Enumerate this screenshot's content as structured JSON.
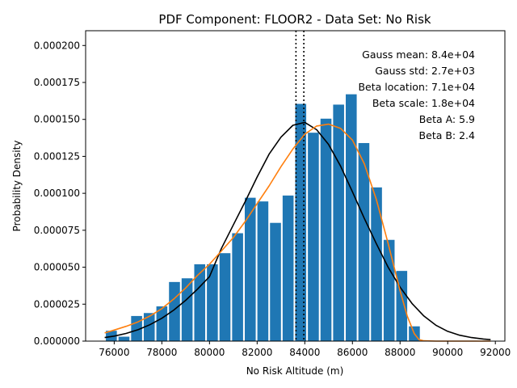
{
  "chart_data": {
    "type": "bar",
    "title": "PDF Component: FLOOR2 - Data Set: No Risk",
    "xlabel": "No Risk Altitude (m)",
    "ylabel": "Probability Density",
    "xlim": [
      74800,
      92400
    ],
    "ylim": [
      0,
      0.00021
    ],
    "xticks": [
      76000,
      78000,
      80000,
      82000,
      84000,
      86000,
      88000,
      90000,
      92000
    ],
    "xtick_labels": [
      "76000",
      "78000",
      "80000",
      "82000",
      "84000",
      "86000",
      "88000",
      "90000",
      "92000"
    ],
    "yticks": [
      0,
      2.5e-05,
      5e-05,
      7.5e-05,
      0.0001,
      0.000125,
      0.00015,
      0.000175,
      0.0002
    ],
    "ytick_labels": [
      "0.000000",
      "0.000025",
      "0.000050",
      "0.000075",
      "0.000100",
      "0.000125",
      "0.000150",
      "0.000175",
      "0.000200"
    ],
    "grid": false,
    "bar_color": "#1f77b4",
    "bars": {
      "width": 460,
      "centers": [
        75880,
        76410,
        76940,
        77470,
        78000,
        78530,
        79060,
        79590,
        80120,
        80650,
        81180,
        81710,
        82240,
        82770,
        83300,
        83830,
        84360,
        84890,
        85420,
        85950,
        86480,
        87010,
        87540,
        88070,
        88600
      ],
      "values": [
        7e-06,
        3e-06,
        1.7e-05,
        1.9e-05,
        2.35e-05,
        4e-05,
        4.25e-05,
        5.2e-05,
        5.2e-05,
        5.95e-05,
        7.3e-05,
        9.7e-05,
        9.45e-05,
        8e-05,
        9.85e-05,
        0.0001605,
        0.000141,
        0.0001505,
        0.00016,
        0.000167,
        0.000134,
        0.000104,
        6.85e-05,
        4.75e-05,
        1e-05
      ]
    },
    "series": [
      {
        "kind": "gauss",
        "color": "#000000",
        "x": [
          75600,
          76000,
          76500,
          77000,
          77500,
          78000,
          78500,
          79000,
          79500,
          80000,
          80500,
          81000,
          81500,
          82000,
          82500,
          83000,
          83500,
          84000,
          84500,
          85000,
          85500,
          86000,
          86500,
          87000,
          87500,
          88000,
          88500,
          89000,
          89500,
          90000,
          90500,
          91000,
          91500,
          91800
        ],
        "y": [
          2.4e-06,
          3.4e-06,
          5.2e-06,
          7.7e-06,
          1.11e-05,
          1.55e-05,
          2.1e-05,
          2.76e-05,
          3.52e-05,
          4.36e-05,
          6.27e-05,
          7.86e-05,
          9.45e-05,
          0.000111,
          0.0001265,
          0.000138,
          0.000146,
          0.000148,
          0.000143,
          0.000133,
          0.0001185,
          0.000101,
          8.3e-05,
          6.6e-05,
          5e-05,
          3.65e-05,
          2.55e-05,
          1.7e-05,
          1.08e-05,
          6.6e-06,
          4e-06,
          2.4e-06,
          1.4e-06,
          1e-06
        ]
      },
      {
        "kind": "beta",
        "color": "#ff7f0e",
        "x": [
          75600,
          76000,
          76500,
          77000,
          77500,
          78000,
          78500,
          79000,
          79500,
          80000,
          80500,
          81000,
          81500,
          82000,
          82500,
          83000,
          83500,
          84000,
          84500,
          85000,
          85500,
          86000,
          86500,
          87000,
          87500,
          88000,
          88300,
          88600,
          88800,
          89000,
          89500,
          90000,
          91000,
          91800
        ],
        "y": [
          5.5e-06,
          7.5e-06,
          1e-05,
          1.3e-05,
          1.7e-05,
          2.2e-05,
          2.85e-05,
          3.6e-05,
          4.45e-05,
          5.2e-05,
          6.1e-05,
          7e-05,
          8.1e-05,
          9.3e-05,
          0.000105,
          0.000118,
          0.00013,
          0.00014,
          0.0001455,
          0.0001468,
          0.000144,
          0.000136,
          0.00012,
          9.6e-05,
          6.6e-05,
          3.4e-05,
          1.7e-05,
          5e-06,
          1e-06,
          2e-07,
          0,
          0,
          0,
          0
        ]
      }
    ],
    "vlines": [
      {
        "x": 83630,
        "color": "#000000",
        "style": "dotted"
      },
      {
        "x": 83960,
        "color": "#000000",
        "style": "dotted"
      }
    ],
    "annotations": [
      "Gauss mean: 8.4e+04",
      "Gauss std: 2.7e+03",
      "Beta location: 7.1e+04",
      "Beta scale: 1.8e+04",
      "Beta A: 5.9",
      "Beta B: 2.4"
    ],
    "annotation_placement": "top-right"
  }
}
